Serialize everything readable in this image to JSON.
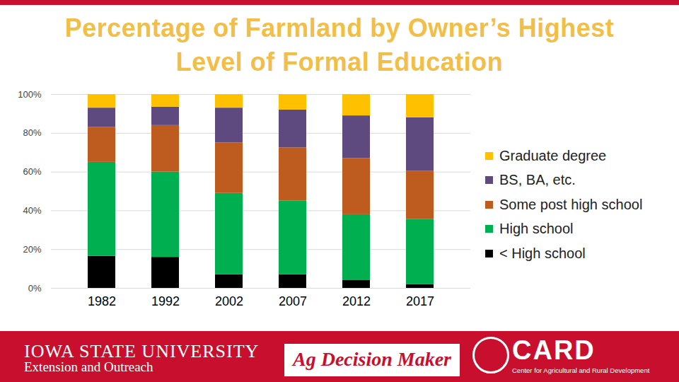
{
  "chart_data": {
    "type": "bar",
    "title": "Percentage of Farmland by Owner’s Highest Level of Formal Education",
    "stacked": true,
    "grid": true,
    "legend": "right",
    "categories": [
      "1982",
      "1992",
      "2002",
      "2007",
      "2012",
      "2017"
    ],
    "series": [
      {
        "name": "< High school",
        "color": "#000000",
        "values": [
          16.5,
          16,
          7,
          7,
          4,
          2
        ]
      },
      {
        "name": "High school",
        "color": "#00b050",
        "values": [
          48.5,
          44,
          42,
          38,
          34,
          33.5
        ]
      },
      {
        "name": "Some post high school",
        "color": "#be5b1e",
        "values": [
          18,
          24,
          26,
          27.5,
          29,
          25
        ]
      },
      {
        "name": "BS, BA, etc.",
        "color": "#5e4a7e",
        "values": [
          10,
          9.5,
          18,
          19.5,
          22,
          27.5
        ]
      },
      {
        "name": "Graduate degree",
        "color": "#ffc000",
        "values": [
          7,
          6.5,
          7,
          8,
          11,
          12
        ]
      }
    ],
    "ylim": [
      0,
      100
    ],
    "yticks": [
      {
        "value": 0,
        "label": "0%"
      },
      {
        "value": 20,
        "label": "20%"
      },
      {
        "value": 40,
        "label": "40%"
      },
      {
        "value": 60,
        "label": "60%"
      },
      {
        "value": 80,
        "label": "80%"
      },
      {
        "value": 100,
        "label": "100%"
      }
    ],
    "annotations": [
      "IOWA STATE UNIVERSITY",
      "Extension and Outreach",
      "Ag Decision Maker",
      "CARD",
      "Center for Agricultural and Rural Development"
    ]
  }
}
